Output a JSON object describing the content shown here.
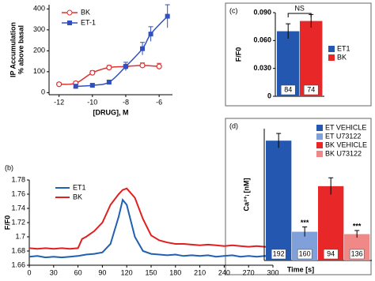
{
  "chart_data": [
    {
      "type": "scatter",
      "xlabel": "[DRUG], M",
      "ylabel": [
        "IP Accumulation",
        "% above basal"
      ],
      "xlim": [
        -12.6,
        -5.2
      ],
      "xticks": [
        -12,
        -10,
        -8,
        -6
      ],
      "ylim": [
        -10,
        420
      ],
      "yticks": [
        0,
        100,
        200,
        300,
        400
      ],
      "legend": "upper left",
      "series": [
        {
          "name": "BK",
          "color": "#e03030",
          "marker": "circle-open",
          "x": [
            -12,
            -11,
            -10,
            -9,
            -8,
            -7,
            -6
          ],
          "values": [
            40,
            45,
            95,
            120,
            125,
            130,
            125
          ],
          "errors": [
            8,
            8,
            10,
            10,
            10,
            12,
            15
          ]
        },
        {
          "name": "ET-1",
          "color": "#3050c0",
          "marker": "square",
          "x": [
            -11,
            -10,
            -9,
            -8,
            -7,
            -6.5,
            -5.5
          ],
          "values": [
            30,
            35,
            50,
            125,
            210,
            280,
            365
          ],
          "errors": [
            10,
            8,
            10,
            20,
            30,
            35,
            55
          ]
        }
      ]
    },
    {
      "type": "line",
      "panel_label": "(b)",
      "ylabel": "F/F0",
      "x": [
        0,
        10,
        20,
        30,
        40,
        50,
        60,
        65,
        70,
        80,
        90,
        100,
        110,
        115,
        120,
        130,
        140,
        150,
        160,
        170,
        180,
        190,
        200,
        210,
        220,
        230,
        240,
        250,
        260,
        270,
        280,
        290,
        300
      ],
      "xlim": [
        0,
        300
      ],
      "xticks": [
        0,
        30,
        60,
        90,
        120,
        150,
        180,
        210,
        240,
        270,
        300
      ],
      "ylim": [
        1.66,
        1.78
      ],
      "yticks": [
        1.66,
        1.68,
        1.7,
        1.72,
        1.74,
        1.76,
        1.78
      ],
      "legend": "upper left",
      "series": [
        {
          "name": "ET1",
          "color": "#2060b0",
          "values": [
            1.672,
            1.673,
            1.671,
            1.672,
            1.671,
            1.672,
            1.673,
            1.674,
            1.675,
            1.676,
            1.678,
            1.69,
            1.728,
            1.752,
            1.745,
            1.7,
            1.68,
            1.676,
            1.675,
            1.674,
            1.675,
            1.673,
            1.674,
            1.673,
            1.674,
            1.672,
            1.673,
            1.674,
            1.672,
            1.673,
            1.672,
            1.673,
            1.672
          ]
        },
        {
          "name": "BK",
          "color": "#e02020",
          "values": [
            1.684,
            1.683,
            1.684,
            1.683,
            1.684,
            1.683,
            1.684,
            1.697,
            1.7,
            1.708,
            1.72,
            1.745,
            1.76,
            1.766,
            1.768,
            1.755,
            1.725,
            1.702,
            1.695,
            1.692,
            1.69,
            1.69,
            1.689,
            1.688,
            1.689,
            1.688,
            1.687,
            1.688,
            1.687,
            1.686,
            1.687,
            1.686,
            1.686
          ]
        }
      ]
    },
    {
      "type": "bar",
      "panel_label": "(c)",
      "ylabel": "F/F0",
      "annotation": "NS",
      "legend": "right",
      "categories": [
        "ET1",
        "BK"
      ],
      "values": [
        0.07,
        0.081
      ],
      "errors": [
        0.008,
        0.007
      ],
      "colors": [
        "#2458b0",
        "#e82828"
      ],
      "n_labels": [
        84,
        74
      ],
      "ylim": [
        0,
        0.09
      ],
      "yticks": [
        0,
        {
          "value": 0.03,
          "label": "0.030"
        },
        {
          "value": 0.06,
          "label": "0.060"
        },
        {
          "value": 0.09,
          "label": "0.090"
        }
      ]
    },
    {
      "type": "bar",
      "panel_label": "(d)",
      "ylabel": "Ca²⁺ᵢ [nM]",
      "xlabel": "Time [s]",
      "legend": "upper right",
      "categories": [
        "ET VEHICLE",
        "ET U73122",
        "BK VEHICLE",
        "BK U73122"
      ],
      "values": [
        50,
        12,
        31,
        11
      ],
      "errors": [
        3,
        2,
        3.5,
        1.5
      ],
      "colors": [
        "#2458b0",
        "#7fa0d8",
        "#e82828",
        "#f08888"
      ],
      "n_labels": [
        192,
        160,
        94,
        136
      ],
      "value_notes": [
        null,
        "***",
        null,
        "***"
      ],
      "ylim": [
        0,
        55
      ]
    }
  ]
}
